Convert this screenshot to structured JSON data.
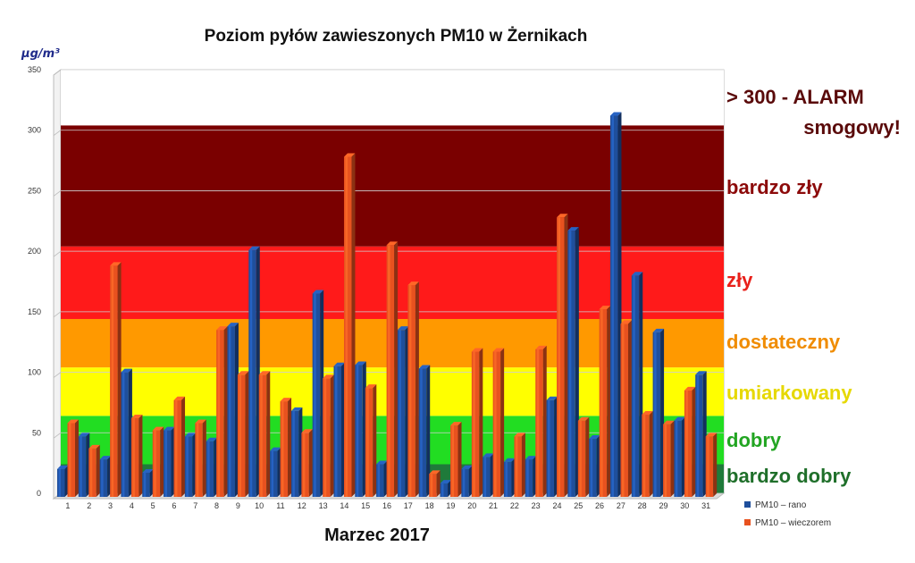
{
  "chart_data": {
    "type": "bar",
    "title": "Poziom pyłów zawieszonych PM10 w Żernikach",
    "xlabel": "Marzec 2017",
    "ylabel_unit": "μg/m³",
    "ylim": [
      0,
      350
    ],
    "yticks": [
      0,
      50,
      100,
      150,
      200,
      250,
      300,
      350
    ],
    "categories": [
      "1",
      "2",
      "3",
      "4",
      "5",
      "6",
      "7",
      "8",
      "9",
      "10",
      "11",
      "12",
      "13",
      "14",
      "15",
      "16",
      "17",
      "18",
      "19",
      "20",
      "21",
      "22",
      "23",
      "24",
      "25",
      "26",
      "27",
      "28",
      "29",
      "30",
      "31"
    ],
    "series": [
      {
        "name": "PM10 – rano",
        "color": "#1f4f9c",
        "values": [
          20,
          47,
          28,
          100,
          17,
          52,
          47,
          43,
          138,
          201,
          35,
          68,
          165,
          105,
          106,
          24,
          135,
          103,
          8,
          20,
          30,
          26,
          28,
          77,
          217,
          45,
          312,
          180,
          133,
          60,
          98
        ]
      },
      {
        "name": "PM10 – wieczorem",
        "color": "#e8521f",
        "values": [
          58,
          37,
          188,
          62,
          52,
          77,
          58,
          135,
          98,
          98,
          76,
          50,
          95,
          278,
          87,
          205,
          172,
          16,
          56,
          117,
          117,
          47,
          119,
          228,
          60,
          152,
          140,
          65,
          57,
          85,
          47
        ]
      }
    ],
    "zones": [
      {
        "label": "bardzo dobry",
        "from": 0,
        "to": 24,
        "color": "#1f7a3a",
        "text_color": "#1f6f2a"
      },
      {
        "label": "dobry",
        "from": 24,
        "to": 64,
        "color": "#22dd22",
        "text_color": "#22a522"
      },
      {
        "label": "umiarkowany",
        "from": 64,
        "to": 104,
        "color": "#ffff00",
        "text_color": "#e6d800"
      },
      {
        "label": "dostateczny",
        "from": 104,
        "to": 144,
        "color": "#ff9900",
        "text_color": "#f08c00"
      },
      {
        "label": "zły",
        "from": 144,
        "to": 204,
        "color": "#ff1a1a",
        "text_color": "#e8201a"
      },
      {
        "label": "bardzo zły",
        "from": 204,
        "to": 304,
        "color": "#7a0000",
        "text_color": "#8c0a0a"
      },
      {
        "label_line1": "> 300 - ALARM",
        "label_line2": "smogowy!",
        "from": 304,
        "to": 350,
        "color": "#ffffff",
        "text_color": "#5a0a0a"
      }
    ],
    "legend_position": "bottom-right",
    "grid": true
  }
}
